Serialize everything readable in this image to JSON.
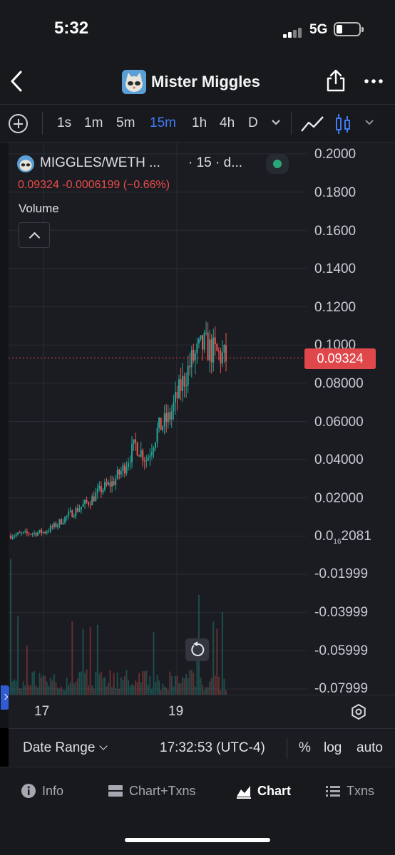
{
  "status_bar": {
    "time": "5:32",
    "network": "5G"
  },
  "nav": {
    "title": "Mister Miggles"
  },
  "toolbar": {
    "intervals": [
      "1s",
      "1m",
      "5m",
      "15m",
      "1h",
      "4h",
      "D"
    ],
    "active_interval": "15m"
  },
  "legend": {
    "symbol": "MIGGLES/WETH ...",
    "interval": "· 15 · d...",
    "price_line": "0.09324  -0.0006199 (−0.66%)",
    "volume_label": "Volume"
  },
  "y_axis": {
    "ticks": [
      {
        "label": "0.2000"
      },
      {
        "label": "0.1800"
      },
      {
        "label": "0.1600"
      },
      {
        "label": "0.1400"
      },
      {
        "label": "0.1200"
      },
      {
        "label": "0.1000"
      },
      {
        "label": "0.08000"
      },
      {
        "label": "0.06000"
      },
      {
        "label": "0.04000"
      },
      {
        "label": "0.02000"
      },
      {
        "label_pre": "0.0",
        "label_sub": "16",
        "label_post": "2081"
      },
      {
        "label": "-0.01999"
      },
      {
        "label": "-0.03999"
      },
      {
        "label": "-0.05999"
      },
      {
        "label": "-0.07999"
      }
    ],
    "current_price": "0.09324"
  },
  "x_axis": {
    "ticks": [
      "17",
      "19"
    ]
  },
  "range_bar": {
    "date_range_label": "Date Range",
    "time": "17:32:53 (UTC-4)",
    "percent_label": "%",
    "log_label": "log",
    "auto_label": "auto"
  },
  "tabs": [
    {
      "label": "Info",
      "icon": "info-icon"
    },
    {
      "label": "Chart+Txns",
      "icon": "chart-txns-icon"
    },
    {
      "label": "Chart",
      "icon": "area-chart-icon",
      "active": true
    },
    {
      "label": "Txns",
      "icon": "list-icon"
    }
  ],
  "colors": {
    "up": "#26a69a",
    "down": "#ef5350",
    "accent": "#3f7bf5",
    "price_tag": "#e0474b",
    "background": "#1b1c21"
  },
  "chart_data": {
    "type": "candlestick",
    "title": "MIGGLES/WETH",
    "interval": "15",
    "x_ticks": [
      "17",
      "19"
    ],
    "ylim": [
      -0.08,
      0.2
    ],
    "last_price": 0.09324,
    "change": -0.0006199,
    "change_pct": -0.66,
    "series": [
      {
        "name": "price_trend",
        "values": [
          0.0003,
          0.0012,
          0.0016,
          0.0022,
          0.0058,
          0.0105,
          0.0145,
          0.0185,
          0.0245,
          0.028,
          0.036,
          0.048,
          0.04,
          0.056,
          0.062,
          0.078,
          0.092,
          0.1,
          0.096,
          0.093
        ]
      }
    ]
  }
}
